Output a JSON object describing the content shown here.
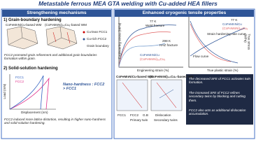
{
  "title": "Metastable ferrous MEA GTA welding with Cu-added HEA fillers",
  "left": {
    "header": "Strengthening mechanisms",
    "section1": {
      "heading": "1) Grain-boundary hardening",
      "wm_a": "CoFeMnNiCu-based WM",
      "wm_b": "(CoFeMnNi)₉₅Cu₅-based WM",
      "label_fcc1": "Cu-lean FCC1",
      "label_fcc2": "Cu-rich FCC2",
      "label_gb": "Grain boundary",
      "bullet": "FCC2 promoted grain refinement and additional grain boundaries formation within grain."
    },
    "section2": {
      "heading": "2) Solid-solution hardening",
      "legend": [
        "FCC1",
        "FCC2"
      ],
      "xlabel": "Displacement (nm)",
      "ylabel": "Load (mN)",
      "note": "Nano-hardness : FCC2 > FCC1",
      "bullet": "FCC2 induced more lattice distortion, resulting in higher nano-hardness and solid-solution hardening."
    }
  },
  "right": {
    "header": "Enhanced cryogenic tensile properties",
    "chart1": {
      "xlabel": "Engineering strain (%)",
      "ylabel": "Engineering stress (MPa)",
      "t77": "77 K",
      "weld": "Weld fracture",
      "t298": "298 K",
      "haz": "HAZ fracture",
      "legend": [
        "CoFeMnNiCu",
        "(CoFeMnNi)₉₅Cu₅"
      ]
    },
    "chart2": {
      "xlabel": "True plastic strain (%)",
      "ylabel": "True stress (MPa)",
      "t77": "77 K",
      "legend": [
        "CoFeMnNiCu",
        "(CoFeMnNi)₉₅Cu₅"
      ],
      "shr": "Strain hardening rate curve",
      "flow": "Flow curve"
    },
    "micro": {
      "wm_a": "CoFeMnNiCu-based WM",
      "wm_b": "(CoFeMnNi)₉₅Cu₅-based WM",
      "legend": [
        "FCC1",
        "FCC2",
        "G.B",
        "Dislocation",
        "Primary twin",
        "Secondary twins"
      ]
    },
    "bullets": [
      "The decreased SFE of FCC1 activates twin formation.",
      "The increased SFE of FCC2 refines secondary twins by blocking and cutting them.",
      "FCC2 also acts as additional dislocation accumulation."
    ]
  }
}
